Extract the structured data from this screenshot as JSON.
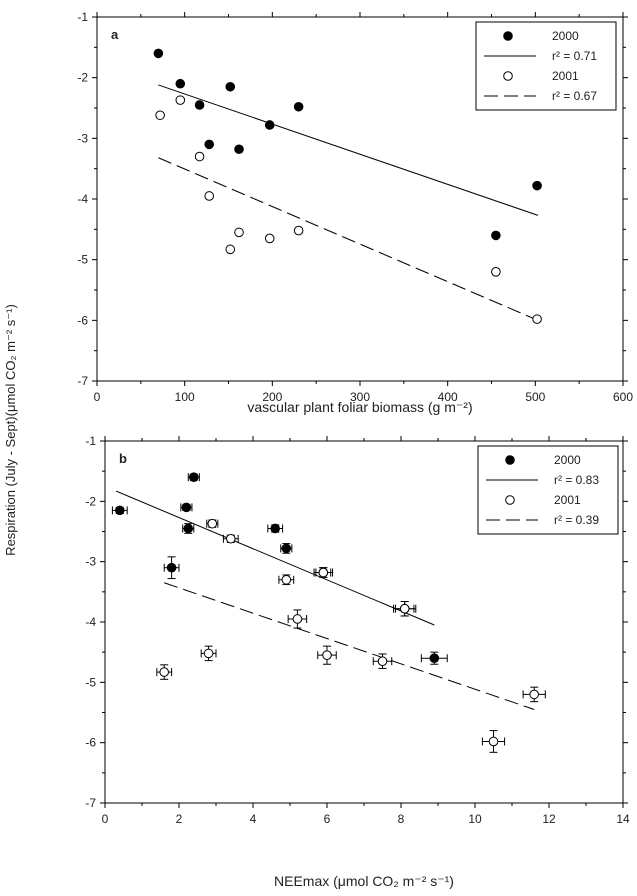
{
  "ylabel_shared": "Respiration (July - Sept)(μmol CO₂ m⁻² s⁻¹)",
  "chart_data": [
    {
      "type": "scatter",
      "panel_label": "a",
      "xlabel": "vascular plant foliar biomass (g m⁻²)",
      "ylabel": "Respiration (July - Sept)(μmol CO₂ m⁻² s⁻¹)",
      "xlim": [
        0,
        600
      ],
      "ylim": [
        -7,
        -1
      ],
      "xticks": [
        0,
        100,
        200,
        300,
        400,
        500,
        600
      ],
      "yticks": [
        -7,
        -6,
        -5,
        -4,
        -3,
        -2,
        -1
      ],
      "grid": false,
      "legend_position": "top-right",
      "series": [
        {
          "name": "2000",
          "marker": "filled-circle",
          "points": [
            [
              70,
              -1.6
            ],
            [
              95,
              -2.1
            ],
            [
              117,
              -2.45
            ],
            [
              128,
              -3.1
            ],
            [
              152,
              -2.15
            ],
            [
              162,
              -3.18
            ],
            [
              197,
              -2.78
            ],
            [
              230,
              -2.48
            ],
            [
              455,
              -4.6
            ],
            [
              502,
              -3.78
            ]
          ]
        },
        {
          "name": "2001",
          "marker": "open-circle",
          "points": [
            [
              72,
              -2.62
            ],
            [
              95,
              -2.37
            ],
            [
              117,
              -3.3
            ],
            [
              128,
              -3.95
            ],
            [
              152,
              -4.83
            ],
            [
              162,
              -4.55
            ],
            [
              197,
              -4.65
            ],
            [
              230,
              -4.52
            ],
            [
              455,
              -5.2
            ],
            [
              502,
              -5.98
            ]
          ]
        }
      ],
      "fits": [
        {
          "label": "r² = 0.71",
          "style": "solid",
          "x": [
            70,
            503
          ],
          "y": [
            -2.12,
            -4.27
          ]
        },
        {
          "label": "r² = 0.67",
          "style": "dashed",
          "x": [
            70,
            503
          ],
          "y": [
            -3.32,
            -6.0
          ]
        }
      ]
    },
    {
      "type": "scatter",
      "panel_label": "b",
      "xlabel": "NEEmax (μmol CO₂ m⁻² s⁻¹)",
      "ylabel": "Respiration (July - Sept)(μmol CO₂ m⁻² s⁻¹)",
      "xlim": [
        0,
        14
      ],
      "ylim": [
        -7,
        -1
      ],
      "xticks": [
        0,
        2,
        4,
        6,
        8,
        10,
        12,
        14
      ],
      "yticks": [
        -7,
        -6,
        -5,
        -4,
        -3,
        -2,
        -1
      ],
      "grid": false,
      "legend_position": "top-right",
      "series": [
        {
          "name": "2000",
          "marker": "filled-circle",
          "points": [
            {
              "x": 0.4,
              "y": -2.15,
              "xerr": 0.2,
              "yerr": 0.05
            },
            {
              "x": 1.8,
              "y": -3.1,
              "xerr": 0.2,
              "yerr": 0.18
            },
            {
              "x": 2.2,
              "y": -2.1,
              "xerr": 0.15,
              "yerr": 0.05
            },
            {
              "x": 2.25,
              "y": -2.45,
              "xerr": 0.15,
              "yerr": 0.08
            },
            {
              "x": 2.4,
              "y": -1.6,
              "xerr": 0.15,
              "yerr": 0.05
            },
            {
              "x": 4.6,
              "y": -2.45,
              "xerr": 0.2,
              "yerr": 0.06
            },
            {
              "x": 4.9,
              "y": -2.78,
              "xerr": 0.15,
              "yerr": 0.08
            },
            {
              "x": 5.9,
              "y": -3.18,
              "xerr": 0.2,
              "yerr": 0.08
            },
            {
              "x": 8.1,
              "y": -3.78,
              "xerr": 0.25,
              "yerr": 0.12
            },
            {
              "x": 8.9,
              "y": -4.6,
              "xerr": 0.35,
              "yerr": 0.1
            }
          ]
        },
        {
          "name": "2001",
          "marker": "open-circle",
          "points": [
            {
              "x": 1.6,
              "y": -4.83,
              "xerr": 0.2,
              "yerr": 0.12
            },
            {
              "x": 2.8,
              "y": -4.52,
              "xerr": 0.2,
              "yerr": 0.12
            },
            {
              "x": 2.9,
              "y": -2.37,
              "xerr": 0.15,
              "yerr": 0.06
            },
            {
              "x": 3.4,
              "y": -2.62,
              "xerr": 0.2,
              "yerr": 0.06
            },
            {
              "x": 4.9,
              "y": -3.3,
              "xerr": 0.2,
              "yerr": 0.08
            },
            {
              "x": 5.2,
              "y": -3.95,
              "xerr": 0.25,
              "yerr": 0.15
            },
            {
              "x": 6.0,
              "y": -4.55,
              "xerr": 0.25,
              "yerr": 0.15
            },
            {
              "x": 5.9,
              "y": -3.18,
              "xerr": 0.25,
              "yerr": 0.08
            },
            {
              "x": 7.5,
              "y": -4.65,
              "xerr": 0.25,
              "yerr": 0.12
            },
            {
              "x": 8.1,
              "y": -3.78,
              "xerr": 0.3,
              "yerr": 0.12
            },
            {
              "x": 10.5,
              "y": -5.98,
              "xerr": 0.3,
              "yerr": 0.18
            },
            {
              "x": 11.6,
              "y": -5.2,
              "xerr": 0.3,
              "yerr": 0.12
            }
          ]
        }
      ],
      "fits": [
        {
          "label": "r² = 0.83",
          "style": "solid",
          "x": [
            0.3,
            8.9
          ],
          "y": [
            -1.83,
            -4.05
          ]
        },
        {
          "label": "r² = 0.39",
          "style": "dashed",
          "x": [
            1.6,
            11.6
          ],
          "y": [
            -3.35,
            -5.45
          ]
        }
      ]
    }
  ]
}
